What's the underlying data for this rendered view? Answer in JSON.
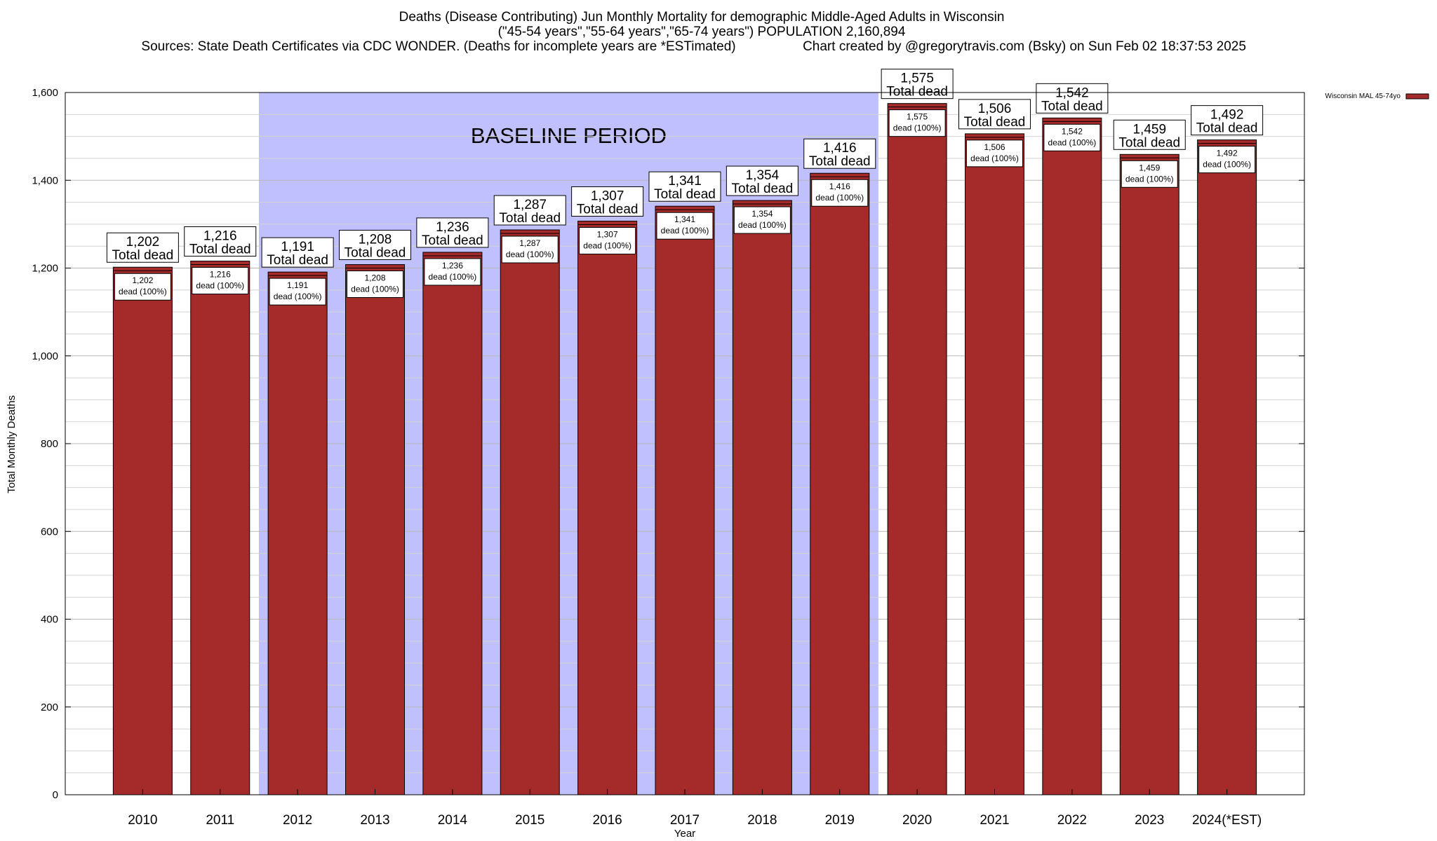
{
  "header": {
    "title_line1": "Deaths (Disease Contributing) Jun Monthly Mortality for demographic Middle-Aged Adults in Wisconsin",
    "title_line2": "(\"45-54 years\",\"55-64 years\",\"65-74 years\") POPULATION 2,160,894",
    "sources": "Sources: State Death Certificates via CDC WONDER. (Deaths for incomplete years are *ESTimated)",
    "credit": "Chart created by @gregorytravis.com (Bsky) on Sun Feb 02 18:37:53 2025"
  },
  "chart_data": {
    "type": "bar",
    "categories": [
      "2010",
      "2011",
      "2012",
      "2013",
      "2014",
      "2015",
      "2016",
      "2017",
      "2018",
      "2019",
      "2020",
      "2021",
      "2022",
      "2023",
      "2024(*EST)"
    ],
    "series": [
      {
        "name": "Wisconsin MAL 45-74yo",
        "values": [
          1202,
          1216,
          1191,
          1208,
          1236,
          1287,
          1307,
          1341,
          1354,
          1416,
          1575,
          1506,
          1542,
          1459,
          1492
        ],
        "color": "#a52a2a"
      }
    ],
    "top_labels": [
      "1,202",
      "1,216",
      "1,191",
      "1,208",
      "1,236",
      "1,287",
      "1,307",
      "1,341",
      "1,354",
      "1,416",
      "1,575",
      "1,506",
      "1,542",
      "1,459",
      "1,492"
    ],
    "top_label_suffix": "Total dead",
    "inner_label_suffix": "dead (100%)",
    "xlabel": "Year",
    "ylabel": "Total Monthly Deaths",
    "ylim": [
      0,
      1600
    ],
    "yticks": [
      0,
      200,
      400,
      600,
      800,
      1000,
      1200,
      1400,
      1600
    ],
    "ytick_labels": [
      "0",
      "200",
      "400",
      "600",
      "800",
      "1,000",
      "1,200",
      "1,400",
      "1,600"
    ],
    "grid": true,
    "baseline_period": {
      "label": "BASELINE PERIOD",
      "from": "2012",
      "to": "2019",
      "color": "#c0c0ff"
    },
    "legend": {
      "position": "top-right",
      "entry": "Wisconsin MAL 45-74yo"
    }
  }
}
